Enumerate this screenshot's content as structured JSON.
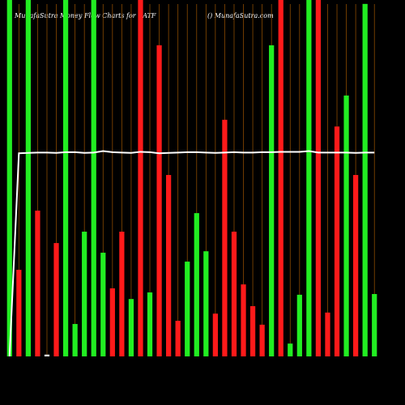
{
  "chart_data": {
    "type": "bar",
    "title": "MunafaSutra  Money Flow  Charts for CATF",
    "subtitle": "() MunafaSutra.com",
    "ylim": [
      0,
      100
    ],
    "categories": [
      null,
      null,
      null,
      null,
      null,
      null,
      null,
      null,
      null,
      null,
      null,
      null,
      null,
      null,
      null,
      null,
      null,
      null,
      null,
      null,
      null,
      null,
      null,
      null,
      null,
      null,
      null,
      null,
      null,
      null,
      null,
      null,
      null,
      null,
      null,
      null,
      null,
      null,
      null,
      null
    ],
    "values": [
      100,
      24.3,
      100,
      40.9,
      0.5,
      31.8,
      100,
      9.1,
      35,
      100,
      29.1,
      19.1,
      35,
      16.1,
      100,
      17.95,
      87.3,
      50.9,
      10,
      26.6,
      40.2,
      29.5,
      12,
      66.4,
      35,
      20.2,
      14.1,
      8.9,
      87.3,
      100,
      3.6,
      17.3,
      100,
      100,
      12.3,
      64.5,
      73.2,
      50.9,
      98.9,
      17.5
    ],
    "bar_colors": [
      "#22ee22",
      "#ff1a1a",
      "#22ee22",
      "#ff1a1a",
      "#ffffff",
      "#ff1a1a",
      "#22ee22",
      "#22ee22",
      "#22ee22",
      "#22ee22",
      "#22ee22",
      "#ff1a1a",
      "#ff1a1a",
      "#22ee22",
      "#ff1a1a",
      "#22ee22",
      "#ff1a1a",
      "#ff1a1a",
      "#ff1a1a",
      "#22ee22",
      "#22ee22",
      "#22ee22",
      "#ff1a1a",
      "#ff1a1a",
      "#ff1a1a",
      "#ff1a1a",
      "#ff1a1a",
      "#ff1a1a",
      "#22ee22",
      "#ff1a1a",
      "#22ee22",
      "#22ee22",
      "#22ee22",
      "#ff1a1a",
      "#ff1a1a",
      "#ff1a1a",
      "#22ee22",
      "#ff1a1a",
      "#22ee22",
      "#22ee22"
    ],
    "line": {
      "color": "#ffffff",
      "values": [
        0,
        57,
        57.1,
        57.2,
        57.2,
        57.1,
        57.3,
        57.3,
        57.1,
        57.2,
        57.6,
        57.3,
        57.2,
        57.1,
        57.4,
        57.3,
        57.0,
        57.1,
        57.2,
        57.3,
        57.3,
        57.2,
        57.1,
        57.2,
        57.3,
        57.2,
        57.2,
        57.3,
        57.3,
        57.4,
        57.4,
        57.4,
        57.6,
        57.2,
        57.2,
        57.2,
        57.2,
        57.1,
        57.2,
        57.2
      ]
    },
    "grid_color": "#8a4a00"
  }
}
